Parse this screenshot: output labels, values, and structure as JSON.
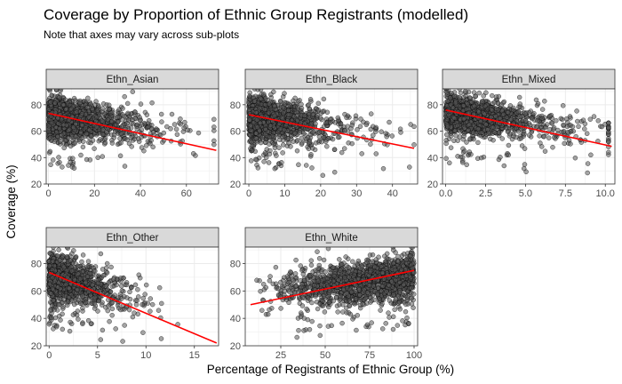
{
  "figure": {
    "title": "Coverage by Proportion of Ethnic Group Registrants (modelled)",
    "subtitle": "Note that axes may vary across sub-plots",
    "xlabel": "Percentage of Registrants of Ethnic Group (%)",
    "ylabel": "Coverage (%)"
  },
  "colors": {
    "panel_bg": "#ffffff",
    "panel_border": "#333333",
    "strip_bg": "#d9d9d9",
    "grid_major": "#ebebeb",
    "point_fill": "#5a5a5a",
    "point_stroke": "#000000",
    "trend_line": "#ff0000"
  },
  "chart_data": {
    "type": "scatter",
    "layout": "facet_wrap",
    "y_axis": {
      "ticks": [
        20,
        40,
        60,
        80
      ],
      "ylim": [
        20,
        92
      ]
    },
    "grid": true,
    "trend": "linear fit",
    "panels": [
      {
        "name": "Ethn_Asian",
        "xlim": [
          -1,
          74
        ],
        "xticks": [
          0,
          20,
          40,
          60
        ],
        "xtick_labels": [
          "0",
          "20",
          "40",
          "60"
        ],
        "trend_line": {
          "x": [
            0,
            73
          ],
          "y": [
            73.5,
            45.5
          ]
        },
        "cloud": {
          "x_max": 72,
          "x_scale": 13,
          "y_center": 68,
          "y_spread": 7.5
        }
      },
      {
        "name": "Ethn_Black",
        "xlim": [
          -1,
          47
        ],
        "xticks": [
          0,
          10,
          20,
          30,
          40
        ],
        "xtick_labels": [
          "0",
          "10",
          "20",
          "30",
          "40"
        ],
        "trend_line": {
          "x": [
            0,
            46
          ],
          "y": [
            72.5,
            47
          ]
        },
        "cloud": {
          "x_max": 46,
          "x_scale": 8,
          "y_center": 68,
          "y_spread": 7.5
        }
      },
      {
        "name": "Ethn_Mixed",
        "xlim": [
          -0.2,
          10.6
        ],
        "xticks": [
          0,
          2.5,
          5,
          7.5,
          10
        ],
        "xtick_labels": [
          "0.0",
          "2.5",
          "5.0",
          "7.5",
          "10.0"
        ],
        "trend_line": {
          "x": [
            0,
            10.4
          ],
          "y": [
            76,
            48.5
          ]
        },
        "cloud": {
          "x_max": 10.2,
          "x_scale": 2.4,
          "y_center": 72,
          "y_spread": 7
        }
      },
      {
        "name": "Ethn_Other",
        "xlim": [
          -0.3,
          17.5
        ],
        "xticks": [
          0,
          5,
          10,
          15
        ],
        "xtick_labels": [
          "0",
          "5",
          "10",
          "15"
        ],
        "trend_line": {
          "x": [
            0,
            17.3
          ],
          "y": [
            73.5,
            22
          ]
        },
        "cloud": {
          "x_max": 17,
          "x_scale": 2.2,
          "y_center": 68,
          "y_spread": 7.5
        }
      },
      {
        "name": "Ethn_White",
        "xlim": [
          5,
          102
        ],
        "xticks": [
          25,
          50,
          75,
          100
        ],
        "xtick_labels": [
          "25",
          "50",
          "75",
          "100"
        ],
        "trend_line": {
          "x": [
            8,
            100
          ],
          "y": [
            50,
            75
          ]
        },
        "cloud": {
          "x_min": 8,
          "x_max": 100,
          "x_power": 0.45,
          "y_center": 66,
          "y_spread": 8
        }
      }
    ]
  }
}
